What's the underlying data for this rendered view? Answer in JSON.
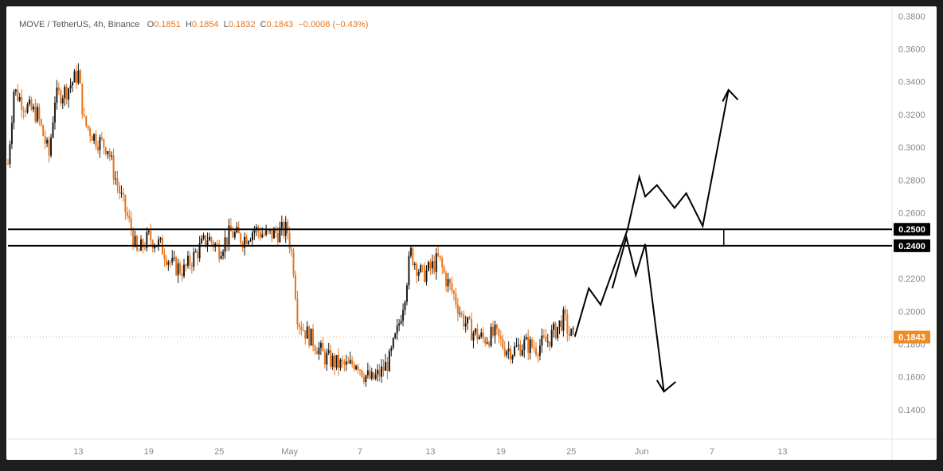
{
  "legend": {
    "symbol": "MOVE / TetherUS, 4h, Binance",
    "o_label": "O",
    "o": "0.1851",
    "h_label": "H",
    "h": "0.1854",
    "l_label": "L",
    "l": "0.1832",
    "c_label": "C",
    "c": "0.1843",
    "change": "−0.0008 (−0.43%)"
  },
  "colors": {
    "up": "#1a1a1a",
    "down": "#e8741a",
    "price_line": "#f0a050",
    "levels": "#000000"
  },
  "chart_data": {
    "type": "candlestick",
    "y_ticks": [
      "0.3800",
      "0.3600",
      "0.3400",
      "0.3200",
      "0.3000",
      "0.2800",
      "0.2600",
      "0.2400",
      "0.2200",
      "0.2000",
      "0.1800",
      "0.1600",
      "0.1400"
    ],
    "ylim": [
      0.122,
      0.385
    ],
    "x_ticks": [
      "13",
      "19",
      "25",
      "May",
      "7",
      "13",
      "19",
      "25",
      "Jun",
      "7",
      "13"
    ],
    "x_tick_days": [
      13,
      19,
      25,
      31,
      37,
      43,
      49,
      55,
      61,
      67,
      73
    ],
    "xlim_days": [
      7.0,
      82.2
    ],
    "levels": [
      {
        "value": 0.25,
        "label": "0.2500"
      },
      {
        "value": 0.24,
        "label": "0.2400"
      }
    ],
    "current_price": {
      "value": 0.1843,
      "label": "0.1843"
    },
    "price_path": [
      [
        7.0,
        0.29
      ],
      [
        7.5,
        0.335
      ],
      [
        8.5,
        0.325
      ],
      [
        9.5,
        0.32
      ],
      [
        10.5,
        0.295
      ],
      [
        11,
        0.33
      ],
      [
        12,
        0.335
      ],
      [
        12.5,
        0.34
      ],
      [
        13,
        0.345
      ],
      [
        13.5,
        0.315
      ],
      [
        14.5,
        0.305
      ],
      [
        15.5,
        0.3
      ],
      [
        16,
        0.285
      ],
      [
        16.7,
        0.268
      ],
      [
        17.5,
        0.25
      ],
      [
        18,
        0.235
      ],
      [
        19,
        0.245
      ],
      [
        20,
        0.24
      ],
      [
        21,
        0.228
      ],
      [
        22,
        0.225
      ],
      [
        23,
        0.235
      ],
      [
        24,
        0.245
      ],
      [
        25,
        0.238
      ],
      [
        26,
        0.248
      ],
      [
        27,
        0.244
      ],
      [
        28,
        0.25
      ],
      [
        29,
        0.246
      ],
      [
        30,
        0.248
      ],
      [
        30.8,
        0.25
      ],
      [
        31.3,
        0.23
      ],
      [
        31.7,
        0.195
      ],
      [
        32.3,
        0.188
      ],
      [
        33,
        0.182
      ],
      [
        34,
        0.172
      ],
      [
        35,
        0.168
      ],
      [
        36,
        0.166
      ],
      [
        36.7,
        0.17
      ],
      [
        37.3,
        0.162
      ],
      [
        38,
        0.158
      ],
      [
        38.7,
        0.162
      ],
      [
        39.5,
        0.17
      ],
      [
        40.2,
        0.188
      ],
      [
        40.8,
        0.21
      ],
      [
        41.3,
        0.236
      ],
      [
        41.8,
        0.228
      ],
      [
        42.3,
        0.222
      ],
      [
        43,
        0.226
      ],
      [
        43.7,
        0.232
      ],
      [
        44.3,
        0.22
      ],
      [
        45,
        0.21
      ],
      [
        45.7,
        0.196
      ],
      [
        46.5,
        0.188
      ],
      [
        47.5,
        0.183
      ],
      [
        48.5,
        0.186
      ],
      [
        49.3,
        0.178
      ],
      [
        50,
        0.176
      ],
      [
        51,
        0.18
      ],
      [
        52,
        0.178
      ],
      [
        53,
        0.182
      ],
      [
        53.8,
        0.19
      ],
      [
        54.4,
        0.196
      ],
      [
        54.8,
        0.186
      ],
      [
        55.3,
        0.184
      ]
    ],
    "annotations": {
      "bull_path": [
        [
          55.3,
          0.1845
        ],
        [
          56.5,
          0.214
        ],
        [
          57.5,
          0.204
        ],
        [
          59.8,
          0.25
        ],
        [
          60.8,
          0.282
        ],
        [
          61.3,
          0.27
        ],
        [
          62.3,
          0.277
        ],
        [
          63.8,
          0.263
        ],
        [
          64.8,
          0.272
        ],
        [
          66.2,
          0.252
        ],
        [
          68.4,
          0.335
        ]
      ],
      "bull_arrow_head": [
        [
          67.9,
          0.328
        ],
        [
          68.4,
          0.335
        ],
        [
          69.2,
          0.329
        ]
      ],
      "bear_path": [
        [
          58.5,
          0.214
        ],
        [
          59.7,
          0.245
        ],
        [
          60.5,
          0.222
        ],
        [
          61.3,
          0.241
        ],
        [
          62.9,
          0.151
        ]
      ],
      "bear_arrow_head": [
        [
          62.3,
          0.158
        ],
        [
          62.9,
          0.151
        ],
        [
          63.9,
          0.157
        ]
      ],
      "range_marker_day": 68.0
    }
  }
}
